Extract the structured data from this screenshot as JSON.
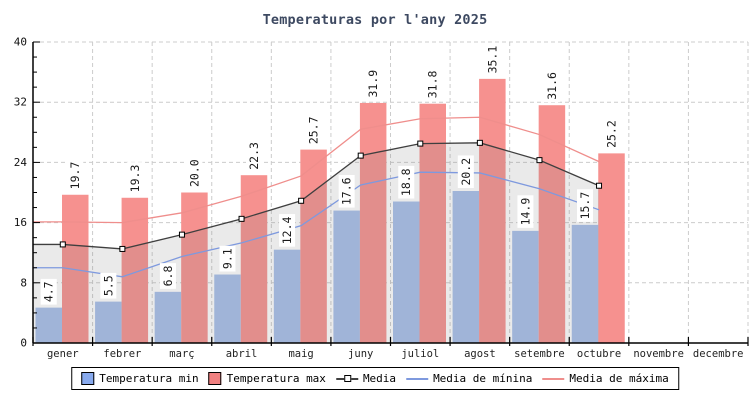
{
  "title": "Temperaturas por l'any 2025",
  "colors": {
    "bar_min": "#a6bfea",
    "bar_max": "#f6918f",
    "legend_bar_min": "#88aaee",
    "legend_bar_max": "#f08080",
    "line_media": "#3f3f3f",
    "line_media_min": "#7e99de",
    "line_media_max": "#ef8e8c",
    "title_color": "#3d4961",
    "grid": "#cccccc",
    "axis": "#000000",
    "area_fill": "rgba(130,130,130,0.17)",
    "label_text": "#1a1a1a"
  },
  "chart_data": {
    "type": "bar",
    "subtype": "bar-and-line-combo",
    "title": "Temperaturas por l'any 2025",
    "categories": [
      "gener",
      "febrer",
      "març",
      "abril",
      "maig",
      "juny",
      "juliol",
      "agost",
      "setembre",
      "octubre",
      "novembre",
      "decembre"
    ],
    "ylim": [
      0,
      40
    ],
    "y_major_ticks": [
      0,
      8,
      16,
      24,
      32,
      40
    ],
    "y_minor_step": 2,
    "grid": true,
    "legend_position": "bottom",
    "bar_value_labels_rotated": true,
    "series": [
      {
        "name": "Temperatura min",
        "type": "bar",
        "values": [
          4.7,
          5.5,
          6.8,
          9.1,
          12.4,
          17.6,
          18.8,
          20.2,
          14.9,
          15.7,
          null,
          null
        ]
      },
      {
        "name": "Temperatura max",
        "type": "bar",
        "values": [
          19.7,
          19.3,
          20.0,
          22.3,
          25.7,
          31.9,
          31.8,
          35.1,
          31.6,
          25.2,
          null,
          null
        ]
      },
      {
        "name": "Media",
        "type": "line",
        "marker": "open-square",
        "shaded_area_below": true,
        "values": [
          13.1,
          12.5,
          14.4,
          16.5,
          18.9,
          24.9,
          26.5,
          26.6,
          24.3,
          20.9,
          null,
          null
        ]
      },
      {
        "name": "Media de mínina",
        "type": "line",
        "values": [
          10.0,
          8.8,
          11.5,
          13.3,
          15.6,
          21.0,
          22.7,
          22.6,
          20.5,
          17.7,
          null,
          null
        ]
      },
      {
        "name": "Media de máxima",
        "type": "line",
        "values": [
          16.1,
          16.0,
          17.3,
          19.5,
          22.2,
          28.4,
          29.8,
          30.0,
          27.7,
          24.1,
          null,
          null
        ]
      }
    ]
  }
}
